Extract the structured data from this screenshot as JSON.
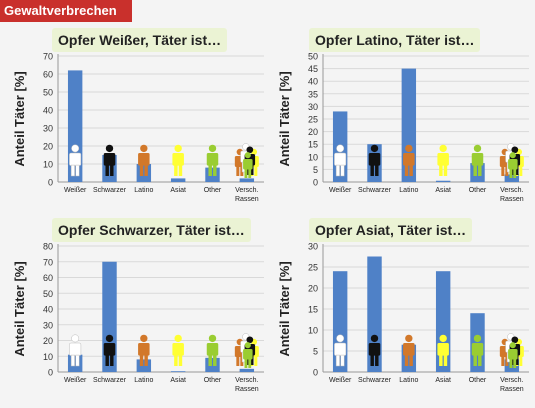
{
  "banner": {
    "label": "Gewaltverbrechen"
  },
  "colors": {
    "banner": "#c9302c",
    "bar": "#4f81c7",
    "title_bg": "#ebf3d4",
    "figure_white": "#ffffff",
    "figure_black": "#111111",
    "figure_latino": "#d2782a",
    "figure_asian": "#ffff33",
    "figure_other": "#9acd32"
  },
  "chart_data": [
    {
      "type": "bar",
      "title": "Opfer Weißer, Täter ist…",
      "ylabel": "Anteil Täter [%]",
      "categories": [
        "Weißer",
        "Schwarzer",
        "Latino",
        "Asiat",
        "Other",
        "Versch. Rassen"
      ],
      "values": [
        62,
        15,
        10,
        2,
        8,
        2
      ],
      "ylim": [
        0,
        70
      ],
      "yticks": [
        0,
        10,
        20,
        30,
        40,
        50,
        60,
        70
      ],
      "grid": true,
      "figure_icons": [
        "white",
        "black",
        "latino",
        "asian",
        "other",
        "mixed"
      ]
    },
    {
      "type": "bar",
      "title": "Opfer Latino, Täter ist…",
      "ylabel": "Anteil Täter [%]",
      "categories": [
        "Weißer",
        "Schwarzer",
        "Latino",
        "Asiat",
        "Other",
        "Versch. Rassen"
      ],
      "values": [
        28,
        15,
        45,
        0.5,
        7.5,
        3
      ],
      "ylim": [
        0,
        50
      ],
      "yticks": [
        0,
        5,
        10,
        15,
        20,
        25,
        30,
        35,
        40,
        45,
        50
      ],
      "grid": true,
      "figure_icons": [
        "white",
        "black",
        "latino",
        "asian",
        "other",
        "mixed"
      ]
    },
    {
      "type": "bar",
      "title": "Opfer Schwarzer, Täter ist…",
      "ylabel": "Anteil Täter [%]",
      "categories": [
        "Weißer",
        "Schwarzer",
        "Latino",
        "Asiat",
        "Other",
        "Versch. Rassen"
      ],
      "values": [
        11,
        70,
        8,
        0.5,
        9,
        2
      ],
      "ylim": [
        0,
        80
      ],
      "yticks": [
        0,
        10,
        20,
        30,
        40,
        50,
        60,
        70,
        80
      ],
      "grid": true,
      "figure_icons": [
        "white",
        "black",
        "latino",
        "asian",
        "other",
        "mixed"
      ]
    },
    {
      "type": "bar",
      "title": "Opfer Asiat, Täter ist…",
      "ylabel": "Anteil Täter [%]",
      "categories": [
        "Weißer",
        "Schwarzer",
        "Latino",
        "Asiat",
        "Other",
        "Versch. Rassen"
      ],
      "values": [
        24,
        27.5,
        6.5,
        24,
        14,
        3
      ],
      "ylim": [
        0,
        30
      ],
      "yticks": [
        0,
        5,
        10,
        15,
        20,
        25,
        30
      ],
      "grid": true,
      "figure_icons": [
        "white",
        "black",
        "latino",
        "asian",
        "other",
        "mixed"
      ]
    }
  ]
}
